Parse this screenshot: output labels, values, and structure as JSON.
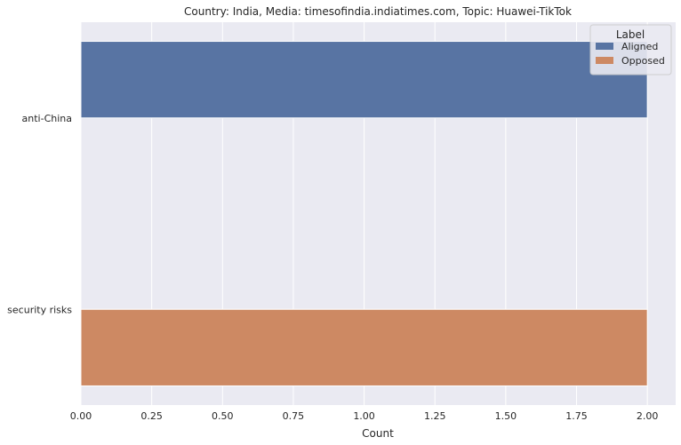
{
  "chart_data": {
    "type": "bar",
    "orientation": "horizontal",
    "title": "Country: India, Media: timesofindia.indiatimes.com, Topic: Huawei-TikTok",
    "xlabel": "Count",
    "ylabel": "",
    "xlim": [
      0,
      2.1
    ],
    "x_ticks": [
      "0.00",
      "0.25",
      "0.50",
      "0.75",
      "1.00",
      "1.25",
      "1.50",
      "1.75",
      "2.00"
    ],
    "categories": [
      "anti-China",
      "security risks"
    ],
    "series": [
      {
        "name": "Aligned",
        "color": "#5874a3",
        "values": [
          2,
          0
        ]
      },
      {
        "name": "Opposed",
        "color": "#cd8963",
        "values": [
          0,
          2
        ]
      }
    ],
    "legend": {
      "title": "Label",
      "placement": "top-right"
    },
    "grid": true,
    "background": "#eaeaf2"
  }
}
